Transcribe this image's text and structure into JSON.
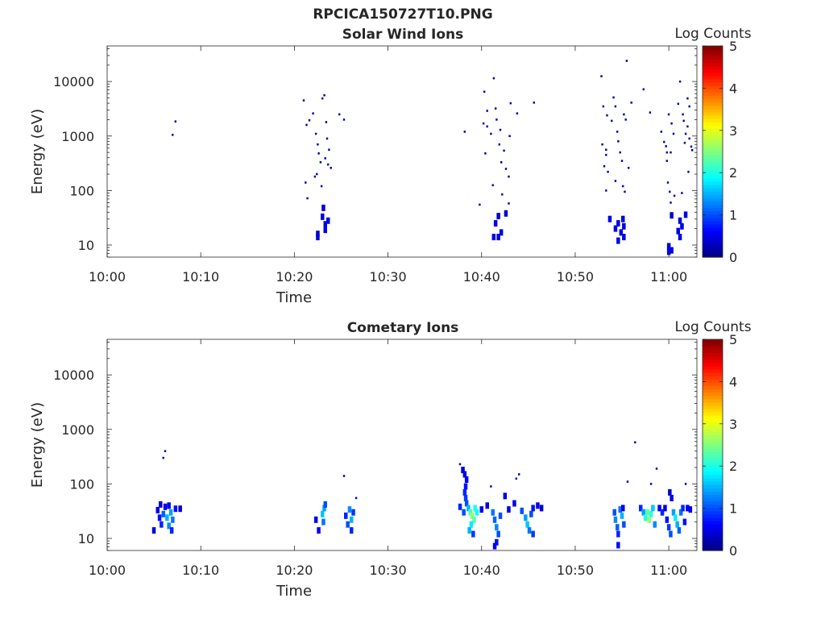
{
  "figure": {
    "title": "RPCICA150727T10.PNG"
  },
  "chart_data": [
    {
      "type": "heatmap",
      "title": "Solar Wind Ions",
      "xlabel": "Time",
      "ylabel": "Energy (eV)",
      "y_scale": "log",
      "ylim": [
        6,
        45000
      ],
      "xlim": [
        "10:00",
        "11:03"
      ],
      "x_ticks": [
        "10:00",
        "10:10",
        "10:20",
        "10:30",
        "10:40",
        "10:50",
        "11:00"
      ],
      "y_ticks": [
        10,
        100,
        1000,
        10000
      ],
      "y_tick_labels": [
        "10",
        "100",
        "1000",
        "10000"
      ],
      "colorbar": {
        "label": "Log Counts",
        "range": [
          0,
          5
        ],
        "ticks": [
          "0",
          "1",
          "2",
          "3",
          "4",
          "5"
        ],
        "colormap": "jet"
      },
      "points": [
        [
          "10:07",
          1050,
          0.2
        ],
        [
          "10:07.3",
          1850,
          0.2
        ],
        [
          "10:21",
          4500,
          0.2
        ],
        [
          "10:21.3",
          1600,
          0.2
        ],
        [
          "10:21.6",
          1950,
          0.2
        ],
        [
          "10:21.2",
          140,
          0.3
        ],
        [
          "10:21.4",
          72,
          0.3
        ],
        [
          "10:22",
          2600,
          0.2
        ],
        [
          "10:22.3",
          1100,
          0.2
        ],
        [
          "10:22.5",
          700,
          0.2
        ],
        [
          "10:22.6",
          480,
          0.2
        ],
        [
          "10:22.8",
          330,
          0.2
        ],
        [
          "10:23",
          4900,
          0.2
        ],
        [
          "10:23.2",
          5600,
          0.2
        ],
        [
          "10:23.4",
          1800,
          0.2
        ],
        [
          "10:23.5",
          900,
          0.2
        ],
        [
          "10:23.7",
          560,
          0.2
        ],
        [
          "10:23.3",
          390,
          0.2
        ],
        [
          "10:23.6",
          300,
          0.2
        ],
        [
          "10:23.9",
          260,
          0.2
        ],
        [
          "10:22.4",
          200,
          0.3
        ],
        [
          "10:22.9",
          120,
          0.3
        ],
        [
          "10:23.1",
          48,
          0.4
        ],
        [
          "10:22.2",
          180,
          0.3
        ],
        [
          "10:24.8",
          2500,
          0.2
        ],
        [
          "10:25.3",
          2000,
          0.2
        ],
        [
          "10:22.5",
          14,
          0.4
        ],
        [
          "10:22.5",
          16,
          0.4
        ],
        [
          "10:23.3",
          19,
          0.5
        ],
        [
          "10:23.3",
          24,
          0.5
        ],
        [
          "10:23",
          33,
          0.5
        ],
        [
          "10:23.6",
          28,
          0.5
        ],
        [
          "10:38.2",
          1200,
          0.2
        ],
        [
          "10:39.8",
          55,
          0.3
        ],
        [
          "10:40.3",
          6500,
          0.2
        ],
        [
          "10:40.6",
          2900,
          0.2
        ],
        [
          "10:40.2",
          1700,
          0.2
        ],
        [
          "10:40.6",
          1500,
          0.2
        ],
        [
          "10:41",
          1100,
          0.2
        ],
        [
          "10:40.4",
          480,
          0.2
        ],
        [
          "10:41.3",
          11500,
          0.2
        ],
        [
          "10:41.5",
          3200,
          0.2
        ],
        [
          "10:41.6",
          2000,
          0.2
        ],
        [
          "10:42",
          1300,
          0.2
        ],
        [
          "10:41.9",
          700,
          0.2
        ],
        [
          "10:42.4",
          540,
          0.2
        ],
        [
          "10:42.1",
          330,
          0.2
        ],
        [
          "10:42.6",
          250,
          0.2
        ],
        [
          "10:42.9",
          180,
          0.2
        ],
        [
          "10:41.2",
          125,
          0.3
        ],
        [
          "10:42.2",
          85,
          0.3
        ],
        [
          "10:43",
          1000,
          0.2
        ],
        [
          "10:43.1",
          4000,
          0.2
        ],
        [
          "10:43.8",
          2600,
          0.2
        ],
        [
          "10:45.6",
          4100,
          0.2
        ],
        [
          "10:42.9",
          58,
          0.3
        ],
        [
          "10:41.5",
          25,
          0.5
        ],
        [
          "10:41.8",
          34,
          0.4
        ],
        [
          "10:41.3",
          14,
          0.5
        ],
        [
          "10:41.8",
          14,
          0.5
        ],
        [
          "10:42.1",
          17,
          0.5
        ],
        [
          "10:42.6",
          38,
          0.4
        ],
        [
          "10:52.8",
          12500,
          0.2
        ],
        [
          "10:53",
          3500,
          0.2
        ],
        [
          "10:52.9",
          700,
          0.2
        ],
        [
          "10:53.3",
          560,
          0.2
        ],
        [
          "10:53.3",
          450,
          0.2
        ],
        [
          "10:53.1",
          280,
          0.2
        ],
        [
          "10:53.5",
          220,
          0.2
        ],
        [
          "10:53.4",
          2400,
          0.2
        ],
        [
          "10:53.9",
          1900,
          0.2
        ],
        [
          "10:54.1",
          5100,
          0.2
        ],
        [
          "10:54.3",
          3500,
          0.2
        ],
        [
          "10:54.5",
          1200,
          0.2
        ],
        [
          "10:54.6",
          800,
          0.2
        ],
        [
          "10:54.8",
          500,
          0.2
        ],
        [
          "10:55",
          350,
          0.2
        ],
        [
          "10:55.2",
          2500,
          0.2
        ],
        [
          "10:55.4",
          2000,
          0.2
        ],
        [
          "10:55.5",
          24000,
          0.2
        ],
        [
          "10:56",
          4100,
          0.2
        ],
        [
          "10:55.7",
          260,
          0.2
        ],
        [
          "10:53.3",
          100,
          0.3
        ],
        [
          "10:54.3",
          150,
          0.3
        ],
        [
          "10:55.1",
          120,
          0.3
        ],
        [
          "10:55.3",
          95,
          0.3
        ],
        [
          "10:53.7",
          30,
          0.5
        ],
        [
          "10:54.3",
          20,
          0.5
        ],
        [
          "10:54.6",
          25,
          0.5
        ],
        [
          "10:54.9",
          17,
          0.5
        ],
        [
          "10:55.1",
          30,
          0.5
        ],
        [
          "10:54.6",
          12,
          0.5
        ],
        [
          "10:55.2",
          14,
          0.5
        ],
        [
          "10:55.2",
          22,
          0.5
        ],
        [
          "10:57.3",
          7200,
          0.2
        ],
        [
          "10:58",
          2700,
          0.2
        ],
        [
          "10:59.2",
          1200,
          0.2
        ],
        [
          "10:59.5",
          780,
          0.2
        ],
        [
          "10:59.7",
          650,
          0.2
        ],
        [
          "10:59.8",
          500,
          0.2
        ],
        [
          "10:59.8",
          350,
          0.2
        ],
        [
          "10:59.9",
          140,
          0.2
        ],
        [
          "11:00",
          2500,
          0.2
        ],
        [
          "11:00.3",
          1700,
          0.2
        ],
        [
          "11:00.5",
          1100,
          0.2
        ],
        [
          "11:00.2",
          500,
          0.2
        ],
        [
          "11:00.1",
          95,
          0.3
        ],
        [
          "11:00.6",
          80,
          0.3
        ],
        [
          "11:01",
          3900,
          0.2
        ],
        [
          "11:01.2",
          10000,
          0.2
        ],
        [
          "11:01.5",
          2500,
          0.2
        ],
        [
          "11:01.6",
          1900,
          0.2
        ],
        [
          "11:01.8",
          1100,
          0.2
        ],
        [
          "11:01.7",
          750,
          0.2
        ],
        [
          "11:02",
          4900,
          0.2
        ],
        [
          "11:02.2",
          3500,
          0.2
        ],
        [
          "11:02",
          1500,
          0.2
        ],
        [
          "11:02.2",
          900,
          0.2
        ],
        [
          "11:02.4",
          640,
          0.2
        ],
        [
          "11:02.5",
          550,
          0.2
        ],
        [
          "11:02.1",
          220,
          0.3
        ],
        [
          "11:01.4",
          90,
          0.3
        ],
        [
          "11:00.2",
          60,
          0.3
        ],
        [
          "11:00.3",
          35,
          0.4
        ],
        [
          "11:00",
          7.5,
          0.5
        ],
        [
          "11:00",
          9.5,
          0.5
        ],
        [
          "11:00.3",
          8,
          0.5
        ],
        [
          "11:01",
          18,
          0.5
        ],
        [
          "11:01.2",
          28,
          0.5
        ],
        [
          "11:01.4",
          22,
          0.5
        ],
        [
          "11:01.2",
          14,
          0.5
        ],
        [
          "11:01.8",
          36,
          0.5
        ]
      ]
    },
    {
      "type": "heatmap",
      "title": "Cometary Ions",
      "xlabel": "Time",
      "ylabel": "Energy (eV)",
      "y_scale": "log",
      "ylim": [
        6,
        45000
      ],
      "xlim": [
        "10:00",
        "11:03"
      ],
      "x_ticks": [
        "10:00",
        "10:10",
        "10:20",
        "10:30",
        "10:40",
        "10:50",
        "11:00"
      ],
      "y_ticks": [
        10,
        100,
        1000,
        10000
      ],
      "y_tick_labels": [
        "10",
        "100",
        "1000",
        "10000"
      ],
      "colorbar": {
        "label": "Log Counts",
        "range": [
          0,
          5
        ],
        "ticks": [
          "0",
          "1",
          "2",
          "3",
          "4",
          "5"
        ],
        "colormap": "jet"
      },
      "points": [
        [
          "10:06.2",
          400,
          0.2
        ],
        [
          "10:06",
          300,
          0.2
        ],
        [
          "10:05",
          14,
          0.4
        ],
        [
          "10:05.4",
          33,
          0.5
        ],
        [
          "10:05.6",
          24,
          0.7
        ],
        [
          "10:05.8",
          18,
          0.8
        ],
        [
          "10:06",
          28,
          1.1
        ],
        [
          "10:06.2",
          38,
          0.6
        ],
        [
          "10:06.4",
          24,
          1.5
        ],
        [
          "10:06.6",
          17,
          1.3
        ],
        [
          "10:06.8",
          30,
          1.4
        ],
        [
          "10:06.9",
          14,
          0.8
        ],
        [
          "10:07",
          22,
          1.2
        ],
        [
          "10:06.6",
          40,
          0.5
        ],
        [
          "10:07.3",
          35,
          0.7
        ],
        [
          "10:07.8",
          35,
          0.4
        ],
        [
          "10:05.7",
          42,
          0.4
        ],
        [
          "10:22.3",
          22,
          0.5
        ],
        [
          "10:22.6",
          14,
          0.6
        ],
        [
          "10:23",
          28,
          1.6
        ],
        [
          "10:23.1",
          20,
          1.2
        ],
        [
          "10:23.2",
          36,
          1.4
        ],
        [
          "10:23.3",
          42,
          1.0
        ],
        [
          "10:25.3",
          140,
          0.3
        ],
        [
          "10:25.5",
          26,
          0.8
        ],
        [
          "10:25.7",
          18,
          1.0
        ],
        [
          "10:25.9",
          34,
          1.3
        ],
        [
          "10:26.1",
          22,
          1.5
        ],
        [
          "10:26.3",
          30,
          0.9
        ],
        [
          "10:26.1",
          14,
          0.8
        ],
        [
          "10:26.6",
          55,
          0.3
        ],
        [
          "10:37.7",
          230,
          0.3
        ],
        [
          "10:38",
          180,
          0.4
        ],
        [
          "10:38.2",
          150,
          0.5
        ],
        [
          "10:38.4",
          120,
          0.6
        ],
        [
          "10:38.3",
          90,
          0.7
        ],
        [
          "10:38.2",
          70,
          0.8
        ],
        [
          "10:38.3",
          55,
          0.9
        ],
        [
          "10:38.4",
          44,
          1.0
        ],
        [
          "10:38.6",
          36,
          1.5
        ],
        [
          "10:38.8",
          30,
          2.2
        ],
        [
          "10:39",
          26,
          2.6
        ],
        [
          "10:39.2",
          22,
          2.3
        ],
        [
          "10:38.9",
          18,
          1.8
        ],
        [
          "10:38.7",
          14,
          1.5
        ],
        [
          "10:39.3",
          36,
          2.0
        ],
        [
          "10:39.5",
          30,
          1.9
        ],
        [
          "10:38.1",
          30,
          1.0
        ],
        [
          "10:37.7",
          38,
          0.8
        ],
        [
          "10:40",
          34,
          0.6
        ],
        [
          "10:39.1",
          12,
          0.9
        ],
        [
          "10:41",
          90,
          0.3
        ],
        [
          "10:40.6",
          40,
          0.5
        ],
        [
          "10:41.2",
          30,
          1.2
        ],
        [
          "10:41.4",
          22,
          1.1
        ],
        [
          "10:41.6",
          16,
          1.3
        ],
        [
          "10:41.8",
          12,
          1.0
        ],
        [
          "10:41.6",
          8.5,
          0.7
        ],
        [
          "10:41.4",
          7.2,
          0.6
        ],
        [
          "10:42",
          26,
          1.0
        ],
        [
          "10:42.5",
          60,
          0.4
        ],
        [
          "10:42.9",
          34,
          0.5
        ],
        [
          "10:43.5",
          44,
          0.5
        ],
        [
          "10:44",
          150,
          0.3
        ],
        [
          "10:43.7",
          125,
          0.3
        ],
        [
          "10:44.3",
          32,
          1.0
        ],
        [
          "10:44.7",
          24,
          1.4
        ],
        [
          "10:44.9",
          18,
          1.6
        ],
        [
          "10:45.1",
          14,
          1.2
        ],
        [
          "10:45.3",
          28,
          1.0
        ],
        [
          "10:45.5",
          36,
          0.7
        ],
        [
          "10:46",
          40,
          0.5
        ],
        [
          "10:46.4",
          36,
          0.4
        ],
        [
          "10:45.5",
          12,
          0.9
        ],
        [
          "10:54.2",
          30,
          1.0
        ],
        [
          "10:54.3",
          22,
          1.3
        ],
        [
          "10:54.5",
          16,
          1.1
        ],
        [
          "10:54.6",
          12,
          0.8
        ],
        [
          "10:54.6",
          7.5,
          0.7
        ],
        [
          "10:54.8",
          34,
          1.2
        ],
        [
          "10:55",
          26,
          1.5
        ],
        [
          "10:55.2",
          18,
          1.0
        ],
        [
          "10:55.1",
          36,
          0.5
        ],
        [
          "10:55.6",
          110,
          0.3
        ],
        [
          "10:56.4",
          580,
          0.2
        ],
        [
          "10:57",
          36,
          0.8
        ],
        [
          "10:57.3",
          30,
          1.4
        ],
        [
          "10:57.5",
          24,
          2.0
        ],
        [
          "10:57.7",
          30,
          2.3
        ],
        [
          "10:57.9",
          22,
          2.6
        ],
        [
          "10:58.1",
          28,
          2.1
        ],
        [
          "10:58.3",
          36,
          1.6
        ],
        [
          "10:58.5",
          18,
          1.3
        ],
        [
          "10:58.1",
          100,
          0.3
        ],
        [
          "10:58.7",
          190,
          0.3
        ],
        [
          "10:59",
          36,
          0.6
        ],
        [
          "10:59.3",
          30,
          0.8
        ],
        [
          "10:59.6",
          36,
          0.5
        ],
        [
          "10:59.8",
          22,
          0.7
        ],
        [
          "11:00",
          16,
          0.9
        ],
        [
          "11:00.2",
          12,
          1.0
        ],
        [
          "11:00.1",
          70,
          0.4
        ],
        [
          "11:00.3",
          55,
          0.5
        ],
        [
          "11:00.5",
          30,
          1.4
        ],
        [
          "11:00.7",
          24,
          1.8
        ],
        [
          "11:00.9",
          18,
          1.5
        ],
        [
          "11:01.1",
          14,
          1.1
        ],
        [
          "11:01.3",
          30,
          1.2
        ],
        [
          "11:01.5",
          36,
          0.8
        ],
        [
          "11:01.8",
          100,
          0.3
        ],
        [
          "11:02",
          36,
          0.6
        ],
        [
          "11:02.3",
          34,
          0.5
        ],
        [
          "11:01.7",
          20,
          0.7
        ]
      ]
    }
  ]
}
